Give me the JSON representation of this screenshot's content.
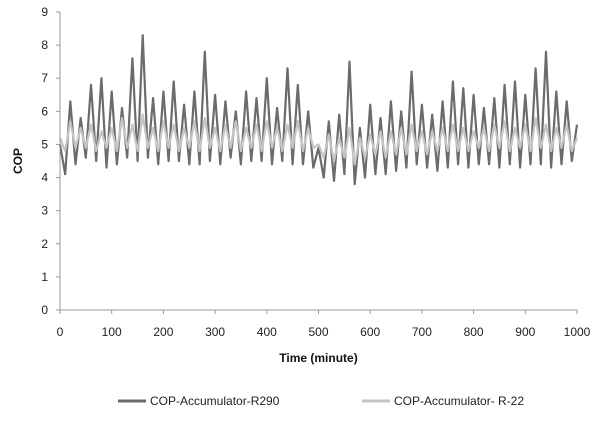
{
  "chart_data": {
    "type": "line",
    "title": "",
    "xlabel": "Time (minute)",
    "ylabel": "COP",
    "xlim": [
      0,
      1000
    ],
    "ylim": [
      0,
      9
    ],
    "xticks": [
      0,
      100,
      200,
      300,
      400,
      500,
      600,
      700,
      800,
      900,
      1000
    ],
    "yticks": [
      0,
      1,
      2,
      3,
      4,
      5,
      6,
      7,
      8,
      9
    ],
    "grid": false,
    "legend_position": "bottom",
    "series": [
      {
        "name": "COP-Accumulator-R290",
        "color": "#6b6b6b",
        "x": [
          0,
          10,
          20,
          30,
          40,
          50,
          60,
          70,
          80,
          90,
          100,
          110,
          120,
          130,
          140,
          150,
          160,
          170,
          180,
          190,
          200,
          210,
          220,
          230,
          240,
          250,
          260,
          270,
          280,
          290,
          300,
          310,
          320,
          330,
          340,
          350,
          360,
          370,
          380,
          390,
          400,
          410,
          420,
          430,
          440,
          450,
          460,
          470,
          480,
          490,
          500,
          510,
          520,
          530,
          540,
          550,
          560,
          570,
          580,
          590,
          600,
          610,
          620,
          630,
          640,
          650,
          660,
          670,
          680,
          690,
          700,
          710,
          720,
          730,
          740,
          750,
          760,
          770,
          780,
          790,
          800,
          810,
          820,
          830,
          840,
          850,
          860,
          870,
          880,
          890,
          900,
          910,
          920,
          930,
          940,
          950,
          960,
          970,
          980,
          990,
          1000
        ],
        "y": [
          5.0,
          4.1,
          6.3,
          4.4,
          5.8,
          4.6,
          6.8,
          4.5,
          7.0,
          4.3,
          6.6,
          4.4,
          6.1,
          4.6,
          7.6,
          4.5,
          8.3,
          4.6,
          6.4,
          4.4,
          6.6,
          4.5,
          6.9,
          4.5,
          6.2,
          4.4,
          6.6,
          4.4,
          7.8,
          4.5,
          6.5,
          4.4,
          6.3,
          4.6,
          6.0,
          4.4,
          6.6,
          4.5,
          6.4,
          4.5,
          7.0,
          4.4,
          6.1,
          4.5,
          7.3,
          4.4,
          6.8,
          4.4,
          6.0,
          4.3,
          4.9,
          4.0,
          5.7,
          3.9,
          5.9,
          4.1,
          7.5,
          3.8,
          5.5,
          4.0,
          6.2,
          4.1,
          5.8,
          4.1,
          6.3,
          4.2,
          6.0,
          4.3,
          7.2,
          4.4,
          6.2,
          4.3,
          5.9,
          4.2,
          6.3,
          4.3,
          6.9,
          4.4,
          6.7,
          4.3,
          6.5,
          4.4,
          6.1,
          4.4,
          6.4,
          4.3,
          6.8,
          4.4,
          6.9,
          4.3,
          6.5,
          4.4,
          7.3,
          4.4,
          7.8,
          4.3,
          6.6,
          4.4,
          6.3,
          4.5,
          5.6
        ]
      },
      {
        "name": "COP-Accumulator- R-22",
        "color": "#c4c4c4",
        "x": [
          0,
          10,
          20,
          30,
          40,
          50,
          60,
          70,
          80,
          90,
          100,
          110,
          120,
          130,
          140,
          150,
          160,
          170,
          180,
          190,
          200,
          210,
          220,
          230,
          240,
          250,
          260,
          270,
          280,
          290,
          300,
          310,
          320,
          330,
          340,
          350,
          360,
          370,
          380,
          390,
          400,
          410,
          420,
          430,
          440,
          450,
          460,
          470,
          480,
          490,
          500,
          510,
          520,
          530,
          540,
          550,
          560,
          570,
          580,
          590,
          600,
          610,
          620,
          630,
          640,
          650,
          660,
          670,
          680,
          690,
          700,
          710,
          720,
          730,
          740,
          750,
          760,
          770,
          780,
          790,
          800,
          810,
          820,
          830,
          840,
          850,
          860,
          870,
          880,
          890,
          900,
          910,
          920,
          930,
          940,
          950,
          960,
          970,
          980,
          990,
          1000
        ],
        "y": [
          5.2,
          4.8,
          5.7,
          4.9,
          5.5,
          4.9,
          5.6,
          4.8,
          5.4,
          4.9,
          5.5,
          4.8,
          5.8,
          4.9,
          5.6,
          4.8,
          5.9,
          4.9,
          5.5,
          4.8,
          5.7,
          4.9,
          5.6,
          4.8,
          5.5,
          4.9,
          5.7,
          4.8,
          5.8,
          4.9,
          5.5,
          4.8,
          5.6,
          4.9,
          5.7,
          4.8,
          5.5,
          4.9,
          5.6,
          4.8,
          5.7,
          4.9,
          5.5,
          4.8,
          5.6,
          4.9,
          5.7,
          4.8,
          5.5,
          4.9,
          5.0,
          4.6,
          5.3,
          4.5,
          5.2,
          4.6,
          5.5,
          4.4,
          5.2,
          4.6,
          5.3,
          4.7,
          5.4,
          4.6,
          5.4,
          4.7,
          5.5,
          4.7,
          5.6,
          4.8,
          5.4,
          4.7,
          5.4,
          4.8,
          5.5,
          4.8,
          5.6,
          4.8,
          5.5,
          4.8,
          5.4,
          4.9,
          5.5,
          4.8,
          5.6,
          4.9,
          5.7,
          4.8,
          5.5,
          4.9,
          5.6,
          4.8,
          5.8,
          4.9,
          5.6,
          4.8,
          5.5,
          4.9,
          5.6,
          4.8,
          5.2
        ]
      }
    ]
  }
}
